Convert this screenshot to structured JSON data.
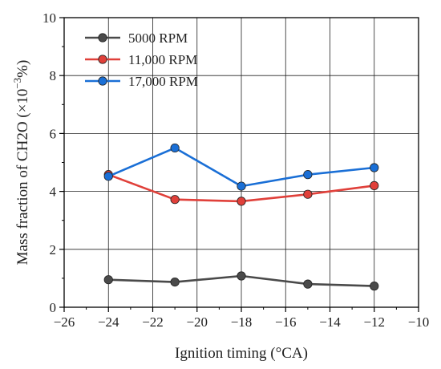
{
  "chart_data": {
    "type": "line",
    "xlabel": "Ignition timing (°CA)",
    "ylabel_prefix": "Mass fraction of CH2O (×10",
    "ylabel_exp": "−3",
    "ylabel_suffix": "%)",
    "xlim": [
      -26,
      -10
    ],
    "ylim": [
      0,
      10
    ],
    "xticks": [
      -26,
      -24,
      -22,
      -20,
      -18,
      -16,
      -14,
      -12,
      -10
    ],
    "xtick_labels": [
      "−26",
      "−24",
      "−22",
      "−20",
      "−18",
      "−16",
      "−14",
      "−12",
      "−10"
    ],
    "yticks": [
      0,
      2,
      4,
      6,
      8,
      10
    ],
    "ytick_labels": [
      "0",
      "2",
      "4",
      "6",
      "8",
      "10"
    ],
    "grid": true,
    "legend_position": "top-left",
    "x": [
      -24,
      -21,
      -18,
      -15,
      -12
    ],
    "series": [
      {
        "name": "5000 RPM",
        "color": "#4a4a4a",
        "values": [
          0.95,
          0.87,
          1.08,
          0.8,
          0.73
        ]
      },
      {
        "name": "11,000 RPM",
        "color": "#e0403a",
        "values": [
          4.58,
          3.72,
          3.66,
          3.9,
          4.2
        ]
      },
      {
        "name": "17,000 RPM",
        "color": "#1a6fd6",
        "values": [
          4.52,
          5.5,
          4.18,
          4.58,
          4.82
        ]
      }
    ]
  }
}
